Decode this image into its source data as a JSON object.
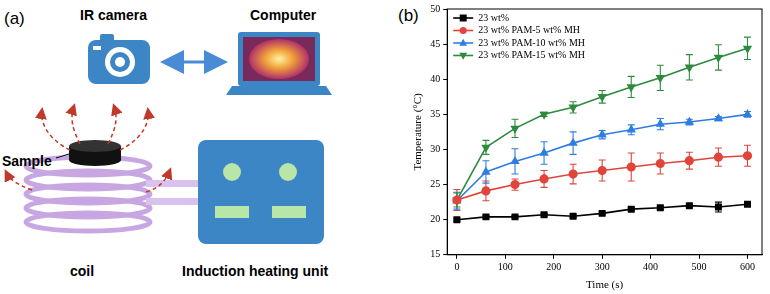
{
  "panels": [
    "(a)",
    "(b)"
  ],
  "diagram": {
    "camera": "IR camera",
    "computer": "Computer",
    "sample": "Sample",
    "coil": "coil",
    "heater": "Induction heating unit"
  },
  "chart_data": {
    "type": "line",
    "x_label": "Time (s)",
    "y_label": "Temperature (°C)",
    "x": [
      0,
      60,
      120,
      180,
      240,
      300,
      360,
      420,
      480,
      540,
      600
    ],
    "xlim": [
      -20,
      630
    ],
    "xticks": [
      0,
      100,
      200,
      300,
      400,
      500,
      600
    ],
    "ylim": [
      15,
      50
    ],
    "yticks": [
      15,
      20,
      25,
      30,
      35,
      40,
      45,
      50
    ],
    "grid": false,
    "legend": "upper left",
    "series": [
      {
        "name": "23 wt%",
        "color": "#000000",
        "marker": "square",
        "values": [
          20.0,
          20.4,
          20.4,
          20.7,
          20.5,
          20.9,
          21.5,
          21.7,
          22.0,
          21.8,
          22.2
        ],
        "errors": [
          0.2,
          0.2,
          0.2,
          0.2,
          0.2,
          0.2,
          0.2,
          0.2,
          0.2,
          0.7,
          0.2
        ]
      },
      {
        "name": "23 wt% PAM-5 wt% MH",
        "color": "#e0453c",
        "marker": "circle",
        "values": [
          22.8,
          24.1,
          25.0,
          25.8,
          26.5,
          27.0,
          27.5,
          28.0,
          28.4,
          28.9,
          29.1
        ],
        "errors": [
          1.5,
          1.4,
          0.8,
          1.2,
          1.4,
          1.5,
          2.0,
          1.5,
          1.2,
          1.3,
          1.5
        ]
      },
      {
        "name": "23 wt% PAM-10 wt% MH",
        "color": "#2f7de1",
        "marker": "triangle",
        "values": [
          22.7,
          26.8,
          28.3,
          29.5,
          30.9,
          32.1,
          32.8,
          33.6,
          33.9,
          34.4,
          35.0
        ],
        "errors": [
          1.2,
          1.6,
          1.8,
          1.6,
          1.6,
          0.6,
          0.7,
          0.8,
          0.4,
          0.3,
          0.4
        ]
      },
      {
        "name": "23 wt% PAM-15 wt% MH",
        "color": "#2e8b3e",
        "marker": "triangle_down",
        "values": [
          22.8,
          30.3,
          33.0,
          35.0,
          36.0,
          37.5,
          38.9,
          40.2,
          41.7,
          43.1,
          44.4
        ],
        "errors": [
          1.0,
          1.0,
          1.3,
          0.3,
          0.8,
          0.9,
          1.5,
          1.8,
          1.8,
          1.8,
          1.6
        ]
      }
    ]
  }
}
